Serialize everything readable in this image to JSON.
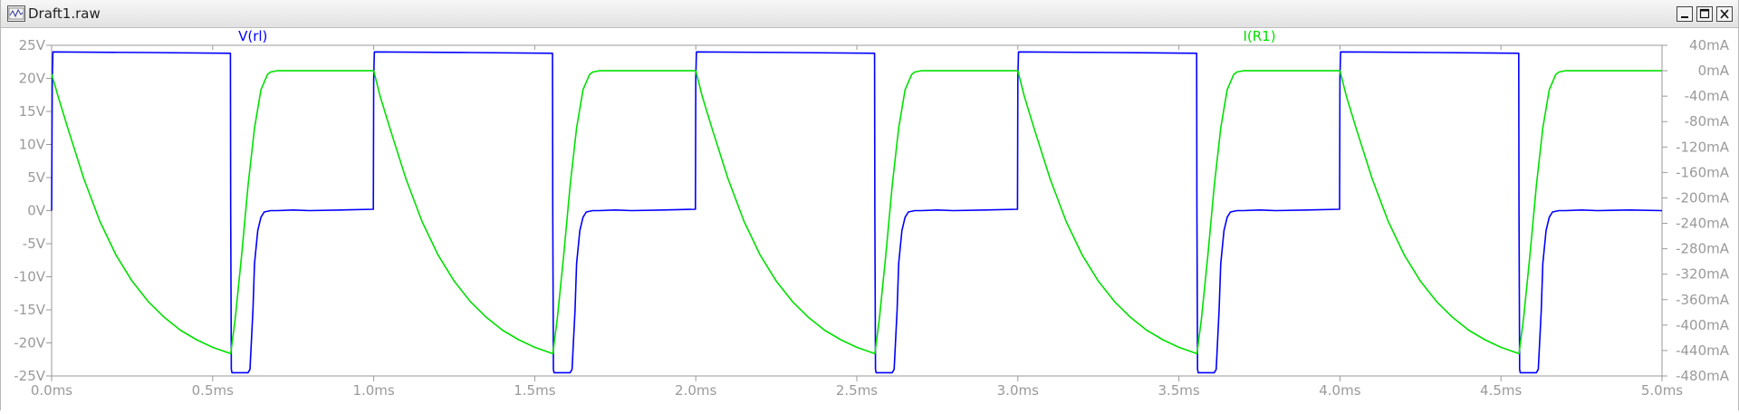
{
  "window": {
    "title": "Draft1.raw",
    "buttons": [
      "minimize",
      "maximize",
      "close"
    ]
  },
  "chart_data": {
    "type": "line",
    "title": "",
    "xlabel": "",
    "ylabel": "",
    "x_unit": "ms",
    "x_ticks": [
      "0.0ms",
      "0.5ms",
      "1.0ms",
      "1.5ms",
      "2.0ms",
      "2.5ms",
      "3.0ms",
      "3.5ms",
      "4.0ms",
      "4.5ms",
      "5.0ms"
    ],
    "xlim": [
      0,
      5.0
    ],
    "y_left": {
      "unit": "V",
      "ticks": [
        "25V",
        "20V",
        "15V",
        "10V",
        "5V",
        "0V",
        "-5V",
        "-10V",
        "-15V",
        "-20V",
        "-25V"
      ],
      "ylim": [
        -25,
        25
      ]
    },
    "y_right": {
      "unit": "mA",
      "ticks": [
        "40mA",
        "0mA",
        "-40mA",
        "-80mA",
        "-120mA",
        "-160mA",
        "-200mA",
        "-240mA",
        "-280mA",
        "-320mA",
        "-360mA",
        "-400mA",
        "-440mA",
        "-480mA"
      ],
      "ylim": [
        -480,
        40
      ]
    },
    "grid": false,
    "series": [
      {
        "name": "V(rl)",
        "axis": "left",
        "color": "#0000ff",
        "x": [
          0.0,
          0.002,
          0.004,
          0.3,
          0.555,
          0.556,
          0.558,
          0.56,
          0.61,
          0.616,
          0.625,
          0.63,
          0.64,
          0.65,
          0.66,
          0.68,
          0.7,
          0.75,
          0.8,
          0.9,
          0.999,
          1.0,
          1.002,
          1.3,
          1.555,
          1.556,
          1.558,
          1.56,
          1.61,
          1.616,
          1.625,
          1.63,
          1.64,
          1.65,
          1.66,
          1.68,
          1.7,
          1.75,
          1.8,
          1.9,
          1.999,
          2.0,
          2.002,
          2.3,
          2.555,
          2.556,
          2.558,
          2.56,
          2.61,
          2.616,
          2.625,
          2.63,
          2.64,
          2.65,
          2.66,
          2.68,
          2.7,
          2.75,
          2.8,
          2.9,
          2.999,
          3.0,
          3.002,
          3.3,
          3.555,
          3.556,
          3.558,
          3.56,
          3.61,
          3.616,
          3.625,
          3.63,
          3.64,
          3.65,
          3.66,
          3.68,
          3.7,
          3.75,
          3.8,
          3.9,
          3.999,
          4.0,
          4.002,
          4.3,
          4.555,
          4.556,
          4.558,
          4.56,
          4.61,
          4.616,
          4.625,
          4.63,
          4.64,
          4.65,
          4.66,
          4.68,
          4.7,
          4.75,
          4.8,
          4.9,
          5.0
        ],
        "y": [
          0.0,
          20.0,
          24.0,
          23.9,
          23.8,
          0.0,
          -24.0,
          -24.5,
          -24.5,
          -24.0,
          -15.0,
          -8.0,
          -3.0,
          -1.0,
          -0.2,
          0.0,
          0.0,
          0.1,
          0.0,
          0.1,
          0.2,
          20.0,
          24.0,
          23.9,
          23.8,
          0.0,
          -24.0,
          -24.5,
          -24.5,
          -24.0,
          -15.0,
          -8.0,
          -3.0,
          -1.0,
          -0.2,
          0.0,
          0.0,
          0.1,
          0.0,
          0.1,
          0.2,
          20.0,
          24.0,
          23.9,
          23.8,
          0.0,
          -24.0,
          -24.5,
          -24.5,
          -24.0,
          -15.0,
          -8.0,
          -3.0,
          -1.0,
          -0.2,
          0.0,
          0.0,
          0.1,
          0.0,
          0.1,
          0.2,
          20.0,
          24.0,
          23.9,
          23.8,
          0.0,
          -24.0,
          -24.5,
          -24.5,
          -24.0,
          -15.0,
          -8.0,
          -3.0,
          -1.0,
          -0.2,
          0.0,
          0.0,
          0.1,
          0.0,
          0.1,
          0.2,
          20.0,
          24.0,
          23.9,
          23.8,
          0.0,
          -24.0,
          -24.5,
          -24.5,
          -24.0,
          -15.0,
          -8.0,
          -3.0,
          -1.0,
          -0.2,
          0.0,
          0.0,
          0.1,
          0.0,
          0.1,
          0.0
        ]
      },
      {
        "name": "I(R1)",
        "axis": "right",
        "color": "#00e000",
        "x": [
          0.0,
          0.02,
          0.05,
          0.1,
          0.15,
          0.2,
          0.25,
          0.3,
          0.35,
          0.4,
          0.45,
          0.5,
          0.556,
          0.57,
          0.59,
          0.61,
          0.63,
          0.65,
          0.67,
          0.68,
          0.7,
          0.72,
          0.75,
          0.8,
          0.9,
          1.0,
          1.02,
          1.05,
          1.1,
          1.15,
          1.2,
          1.25,
          1.3,
          1.35,
          1.4,
          1.45,
          1.5,
          1.556,
          1.57,
          1.59,
          1.61,
          1.63,
          1.65,
          1.67,
          1.68,
          1.7,
          1.72,
          1.75,
          1.8,
          1.9,
          2.0,
          2.02,
          2.05,
          2.1,
          2.15,
          2.2,
          2.25,
          2.3,
          2.35,
          2.4,
          2.45,
          2.5,
          2.556,
          2.57,
          2.59,
          2.61,
          2.63,
          2.65,
          2.67,
          2.68,
          2.7,
          2.72,
          2.75,
          2.8,
          2.9,
          3.0,
          3.02,
          3.05,
          3.1,
          3.15,
          3.2,
          3.25,
          3.3,
          3.35,
          3.4,
          3.45,
          3.5,
          3.556,
          3.57,
          3.59,
          3.61,
          3.63,
          3.65,
          3.67,
          3.68,
          3.7,
          3.72,
          3.75,
          3.8,
          3.9,
          4.0,
          4.02,
          4.05,
          4.1,
          4.15,
          4.2,
          4.25,
          4.3,
          4.35,
          4.4,
          4.45,
          4.5,
          4.556,
          4.57,
          4.59,
          4.61,
          4.63,
          4.65,
          4.67,
          4.68,
          4.7,
          4.72,
          4.75,
          4.8,
          4.9,
          5.0
        ],
        "y": [
          -5,
          -40,
          -90,
          -170,
          -237,
          -290,
          -331,
          -363,
          -388,
          -408,
          -423,
          -435,
          -445,
          -390,
          -290,
          -180,
          -90,
          -30,
          -6,
          -2,
          0,
          0,
          0,
          0,
          0,
          0,
          -40,
          -90,
          -170,
          -237,
          -290,
          -331,
          -363,
          -388,
          -408,
          -423,
          -435,
          -445,
          -390,
          -290,
          -180,
          -90,
          -30,
          -6,
          -2,
          0,
          0,
          0,
          0,
          0,
          0,
          -40,
          -90,
          -170,
          -237,
          -290,
          -331,
          -363,
          -388,
          -408,
          -423,
          -435,
          -445,
          -390,
          -290,
          -180,
          -90,
          -30,
          -6,
          -2,
          0,
          0,
          0,
          0,
          0,
          0,
          -40,
          -90,
          -170,
          -237,
          -290,
          -331,
          -363,
          -388,
          -408,
          -423,
          -435,
          -445,
          -390,
          -290,
          -180,
          -90,
          -30,
          -6,
          -2,
          0,
          0,
          0,
          0,
          0,
          0,
          -40,
          -90,
          -170,
          -237,
          -290,
          -331,
          -363,
          -388,
          -408,
          -423,
          -435,
          -445,
          -390,
          -290,
          -180,
          -90,
          -30,
          -6,
          -2,
          0,
          0,
          0,
          0,
          0,
          0
        ]
      }
    ]
  }
}
